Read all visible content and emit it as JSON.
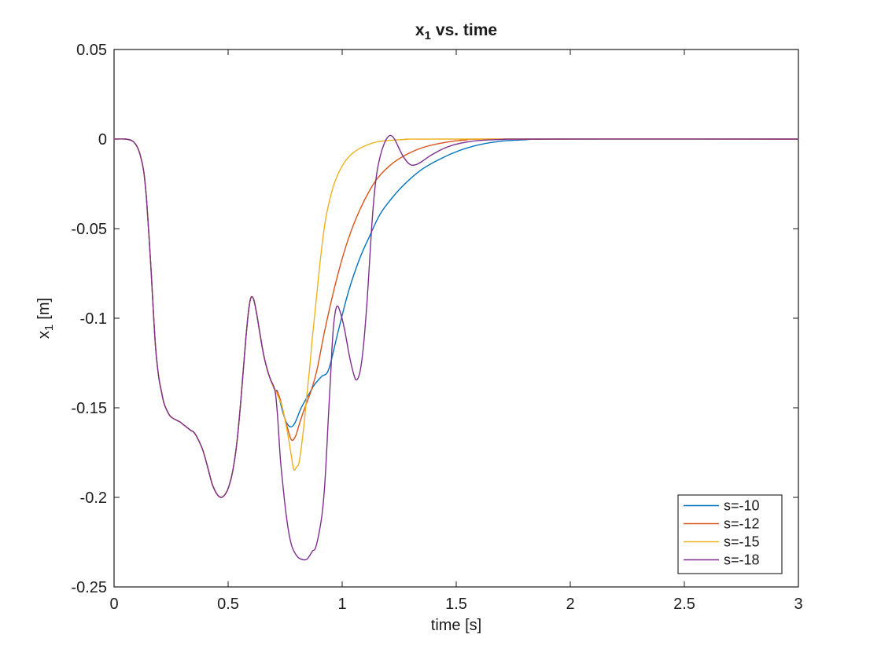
{
  "figure": {
    "title": {
      "base": "x",
      "sub": "1",
      "rest": "vs. time"
    },
    "xlabel": "time [s]",
    "ylabel": {
      "base": "x",
      "sub": "1",
      "rest": "[m]"
    }
  },
  "chart_data": {
    "type": "line",
    "title": "x_1 vs. time",
    "xlabel": "time [s]",
    "ylabel": "x_1 [m]",
    "xlim": [
      0,
      3
    ],
    "ylim": [
      -0.25,
      0.05
    ],
    "xticks": {
      "values": [
        0,
        0.5,
        1,
        1.5,
        2,
        2.5,
        3
      ],
      "labels": [
        "0",
        "0.5",
        "1",
        "1.5",
        "2",
        "2.5",
        "3"
      ]
    },
    "yticks": {
      "values": [
        0.05,
        0,
        -0.05,
        -0.1,
        -0.15,
        -0.2,
        -0.25
      ],
      "labels": [
        "0.05",
        "0",
        "-0.05",
        "-0.1",
        "-0.15",
        "-0.2",
        "-0.25"
      ]
    },
    "grid": false,
    "box": true,
    "axis_color": "#1a1a1a",
    "legend": {
      "position": "southeast",
      "border_color": "#000000",
      "background": "#ffffff"
    },
    "common_points": [
      [
        0,
        0
      ],
      [
        0.05,
        0
      ],
      [
        0.08,
        -0.001
      ],
      [
        0.1,
        -0.004
      ],
      [
        0.115,
        -0.009
      ],
      [
        0.13,
        -0.018
      ],
      [
        0.142,
        -0.033
      ],
      [
        0.152,
        -0.052
      ],
      [
        0.163,
        -0.075
      ],
      [
        0.173,
        -0.098
      ],
      [
        0.183,
        -0.118
      ],
      [
        0.196,
        -0.133
      ],
      [
        0.207,
        -0.1405
      ],
      [
        0.218,
        -0.147
      ],
      [
        0.23,
        -0.151
      ],
      [
        0.245,
        -0.1545
      ],
      [
        0.26,
        -0.156
      ],
      [
        0.275,
        -0.157
      ],
      [
        0.29,
        -0.158
      ],
      [
        0.305,
        -0.1595
      ],
      [
        0.32,
        -0.161
      ],
      [
        0.335,
        -0.1625
      ],
      [
        0.352,
        -0.164
      ],
      [
        0.37,
        -0.168
      ],
      [
        0.39,
        -0.174
      ],
      [
        0.41,
        -0.183
      ],
      [
        0.43,
        -0.1925
      ],
      [
        0.45,
        -0.198
      ],
      [
        0.468,
        -0.2
      ],
      [
        0.486,
        -0.1985
      ],
      [
        0.503,
        -0.194
      ],
      [
        0.52,
        -0.1855
      ],
      [
        0.538,
        -0.17
      ],
      [
        0.553,
        -0.15
      ],
      [
        0.566,
        -0.13
      ],
      [
        0.578,
        -0.111
      ],
      [
        0.59,
        -0.0955
      ],
      [
        0.6,
        -0.0885
      ],
      [
        0.612,
        -0.0895
      ],
      [
        0.625,
        -0.0975
      ],
      [
        0.64,
        -0.109
      ],
      [
        0.655,
        -0.12
      ],
      [
        0.67,
        -0.128
      ],
      [
        0.685,
        -0.134
      ],
      [
        0.705,
        -0.14
      ]
    ],
    "series": [
      {
        "name": "s=-10",
        "color": "#0072BD",
        "points_after_split": [
          [
            0.715,
            -0.1405
          ],
          [
            0.724,
            -0.1446
          ],
          [
            0.741,
            -0.153
          ],
          [
            0.755,
            -0.158
          ],
          [
            0.77,
            -0.1605
          ],
          [
            0.785,
            -0.16
          ],
          [
            0.8,
            -0.1565
          ],
          [
            0.817,
            -0.151
          ],
          [
            0.833,
            -0.147
          ],
          [
            0.856,
            -0.142
          ],
          [
            0.879,
            -0.137
          ],
          [
            0.91,
            -0.1325
          ],
          [
            0.941,
            -0.1285
          ],
          [
            0.983,
            -0.107
          ],
          [
            1.028,
            -0.085
          ],
          [
            1.076,
            -0.067
          ],
          [
            1.121,
            -0.054
          ],
          [
            1.166,
            -0.042
          ],
          [
            1.224,
            -0.032
          ],
          [
            1.283,
            -0.024
          ],
          [
            1.352,
            -0.0167
          ],
          [
            1.431,
            -0.011
          ],
          [
            1.51,
            -0.0066
          ],
          [
            1.603,
            -0.0031
          ],
          [
            1.697,
            -0.0012
          ],
          [
            1.8,
            -0.0004
          ],
          [
            1.95,
            0
          ],
          [
            3,
            0
          ]
        ]
      },
      {
        "name": "s=-12",
        "color": "#D95319",
        "points_after_split": [
          [
            0.715,
            -0.141
          ],
          [
            0.73,
            -0.146
          ],
          [
            0.747,
            -0.155
          ],
          [
            0.762,
            -0.162
          ],
          [
            0.778,
            -0.168
          ],
          [
            0.795,
            -0.166
          ],
          [
            0.81,
            -0.16
          ],
          [
            0.825,
            -0.154
          ],
          [
            0.845,
            -0.147
          ],
          [
            0.865,
            -0.14
          ],
          [
            0.89,
            -0.1285
          ],
          [
            0.924,
            -0.1066
          ],
          [
            0.972,
            -0.08
          ],
          [
            1.017,
            -0.0596
          ],
          [
            1.062,
            -0.0439
          ],
          [
            1.11,
            -0.0311
          ],
          [
            1.155,
            -0.0219
          ],
          [
            1.224,
            -0.0132
          ],
          [
            1.293,
            -0.0079
          ],
          [
            1.362,
            -0.0044
          ],
          [
            1.455,
            -0.0018
          ],
          [
            1.545,
            -0.0005
          ],
          [
            1.65,
            0
          ],
          [
            3,
            0
          ]
        ]
      },
      {
        "name": "s=-15",
        "color": "#EDB120",
        "points_after_split": [
          [
            0.715,
            -0.1425
          ],
          [
            0.736,
            -0.149
          ],
          [
            0.753,
            -0.159
          ],
          [
            0.77,
            -0.171
          ],
          [
            0.787,
            -0.184
          ],
          [
            0.8,
            -0.183
          ],
          [
            0.81,
            -0.181
          ],
          [
            0.821,
            -0.172
          ],
          [
            0.833,
            -0.159
          ],
          [
            0.845,
            -0.143
          ],
          [
            0.857,
            -0.1285
          ],
          [
            0.87,
            -0.11
          ],
          [
            0.887,
            -0.089
          ],
          [
            0.905,
            -0.0665
          ],
          [
            0.925,
            -0.0465
          ],
          [
            0.95,
            -0.0315
          ],
          [
            0.975,
            -0.0215
          ],
          [
            1.01,
            -0.013
          ],
          [
            1.045,
            -0.008
          ],
          [
            1.09,
            -0.0044
          ],
          [
            1.16,
            -0.0014
          ],
          [
            1.28,
            -0.0002
          ],
          [
            1.45,
            0
          ],
          [
            3,
            0
          ]
        ]
      },
      {
        "name": "s=-18",
        "color": "#7E2F8E",
        "points_after_split": [
          [
            0.715,
            -0.152
          ],
          [
            0.722,
            -0.165
          ],
          [
            0.73,
            -0.18
          ],
          [
            0.74,
            -0.193
          ],
          [
            0.75,
            -0.205
          ],
          [
            0.765,
            -0.219
          ],
          [
            0.78,
            -0.2275
          ],
          [
            0.8,
            -0.2325
          ],
          [
            0.82,
            -0.2345
          ],
          [
            0.845,
            -0.2345
          ],
          [
            0.87,
            -0.23
          ],
          [
            0.885,
            -0.2275
          ],
          [
            0.908,
            -0.213
          ],
          [
            0.92,
            -0.199
          ],
          [
            0.928,
            -0.184
          ],
          [
            0.934,
            -0.169
          ],
          [
            0.94,
            -0.154
          ],
          [
            0.947,
            -0.138
          ],
          [
            0.955,
            -0.118
          ],
          [
            0.963,
            -0.103
          ],
          [
            0.976,
            -0.0935
          ],
          [
            0.99,
            -0.096
          ],
          [
            1.01,
            -0.106
          ],
          [
            1.03,
            -0.12
          ],
          [
            1.048,
            -0.13
          ],
          [
            1.062,
            -0.1345
          ],
          [
            1.078,
            -0.13
          ],
          [
            1.092,
            -0.117
          ],
          [
            1.105,
            -0.098
          ],
          [
            1.117,
            -0.075
          ],
          [
            1.128,
            -0.052
          ],
          [
            1.14,
            -0.032
          ],
          [
            1.153,
            -0.018
          ],
          [
            1.168,
            -0.009
          ],
          [
            1.183,
            -0.003
          ],
          [
            1.198,
            0.0008
          ],
          [
            1.212,
            0.002
          ],
          [
            1.227,
            0.0005
          ],
          [
            1.243,
            -0.0035
          ],
          [
            1.262,
            -0.0085
          ],
          [
            1.283,
            -0.0125
          ],
          [
            1.303,
            -0.0145
          ],
          [
            1.325,
            -0.0142
          ],
          [
            1.35,
            -0.0125
          ],
          [
            1.38,
            -0.0098
          ],
          [
            1.415,
            -0.0072
          ],
          [
            1.45,
            -0.005
          ],
          [
            1.49,
            -0.0032
          ],
          [
            1.54,
            -0.0018
          ],
          [
            1.6,
            -0.0008
          ],
          [
            1.7,
            -0.0002
          ],
          [
            1.85,
            0
          ],
          [
            3,
            0
          ]
        ]
      }
    ]
  }
}
